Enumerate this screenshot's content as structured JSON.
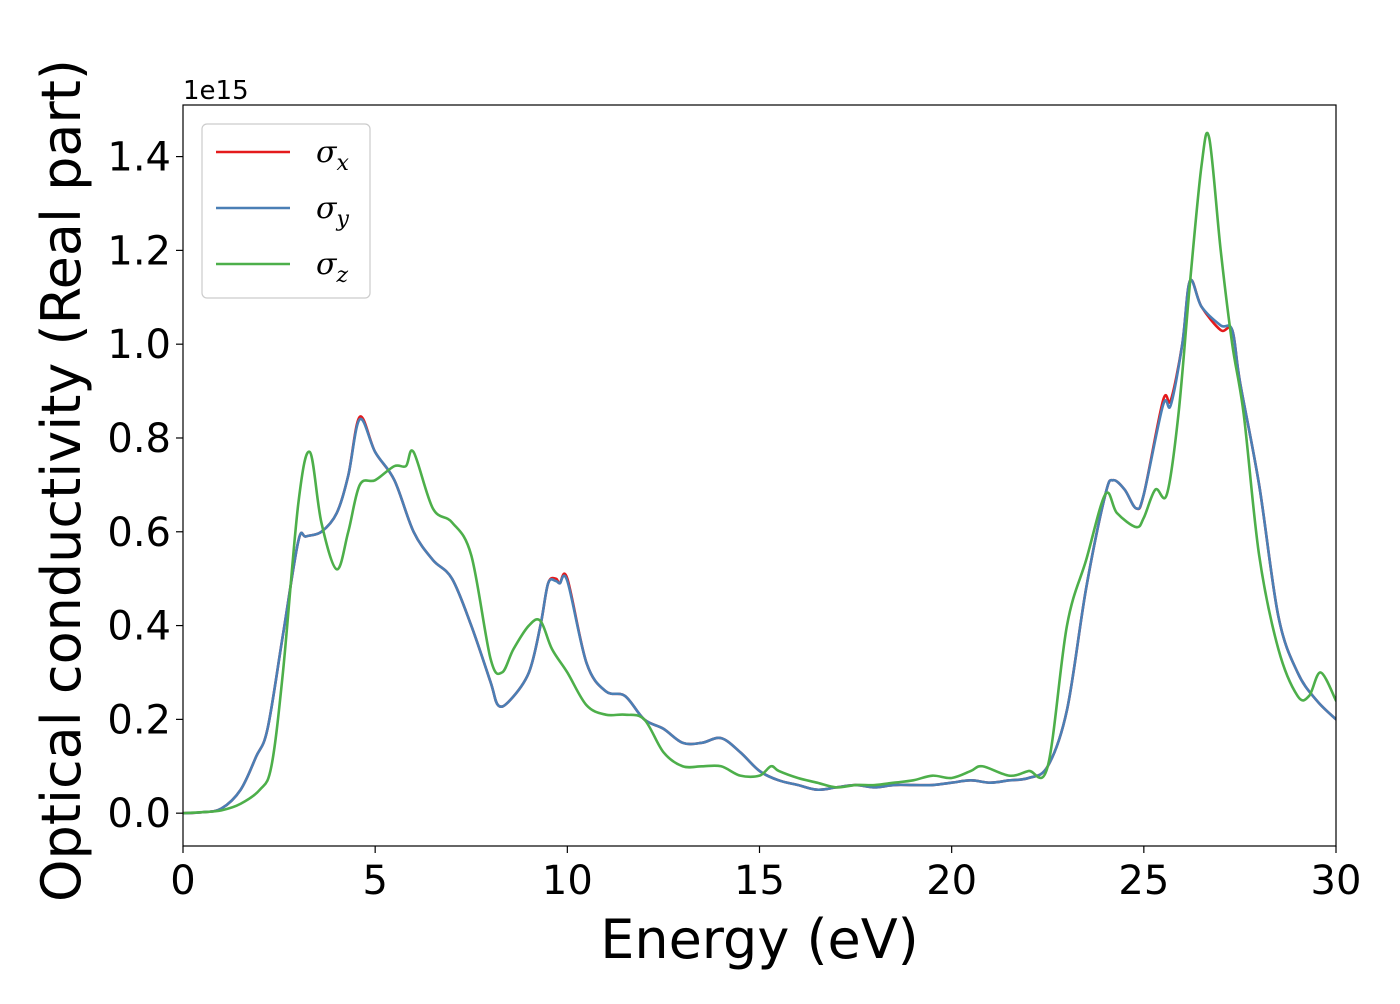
{
  "chart_data": {
    "type": "line",
    "title": "",
    "xlabel": "Energy (eV)",
    "ylabel": "Optical conductivity (Real part)",
    "y_offset_label": "1e15",
    "y_scale": 1000000000000000.0,
    "xlim": [
      0,
      30
    ],
    "ylim": [
      -0.07,
      1.51
    ],
    "x_ticks": [
      0,
      5,
      10,
      15,
      20,
      25,
      30
    ],
    "x_tick_labels": [
      "0",
      "5",
      "10",
      "15",
      "20",
      "25",
      "30"
    ],
    "y_ticks": [
      0.0,
      0.2,
      0.4,
      0.6,
      0.8,
      1.0,
      1.2,
      1.4
    ],
    "y_tick_labels": [
      "0.0",
      "0.2",
      "0.4",
      "0.6",
      "0.8",
      "1.0",
      "1.2",
      "1.4"
    ],
    "grid": false,
    "legend_position": "top-left",
    "series": [
      {
        "name": "σ_x",
        "legend_base": "σ",
        "legend_sub": "x",
        "color": "#e41a1c",
        "x": [
          0,
          0.5,
          1.0,
          1.5,
          1.9,
          2.2,
          2.6,
          3.0,
          3.2,
          3.6,
          4.0,
          4.3,
          4.6,
          5.0,
          5.5,
          6.0,
          6.5,
          7.0,
          7.5,
          8.0,
          8.2,
          8.5,
          9.0,
          9.3,
          9.5,
          9.7,
          9.8,
          10.0,
          10.5,
          11.0,
          11.5,
          12.0,
          12.5,
          13.0,
          13.5,
          14.0,
          14.5,
          15.0,
          15.5,
          16.0,
          16.5,
          17.0,
          17.5,
          18.0,
          18.5,
          19.0,
          19.5,
          20.0,
          20.5,
          21.0,
          21.5,
          22.0,
          22.5,
          23.0,
          23.5,
          24.0,
          24.2,
          24.5,
          24.8,
          25.0,
          25.5,
          25.7,
          26.0,
          26.2,
          26.5,
          27.0,
          27.3,
          27.5,
          28.0,
          28.5,
          29.0,
          29.5,
          30.0
        ],
        "y": [
          0.0,
          0.002,
          0.01,
          0.05,
          0.12,
          0.18,
          0.38,
          0.58,
          0.59,
          0.6,
          0.64,
          0.72,
          0.845,
          0.77,
          0.71,
          0.6,
          0.54,
          0.5,
          0.4,
          0.28,
          0.23,
          0.24,
          0.3,
          0.4,
          0.49,
          0.5,
          0.49,
          0.5,
          0.32,
          0.26,
          0.25,
          0.2,
          0.18,
          0.15,
          0.15,
          0.16,
          0.13,
          0.09,
          0.07,
          0.06,
          0.05,
          0.055,
          0.06,
          0.055,
          0.06,
          0.06,
          0.06,
          0.065,
          0.07,
          0.065,
          0.07,
          0.075,
          0.1,
          0.22,
          0.48,
          0.68,
          0.71,
          0.69,
          0.65,
          0.68,
          0.88,
          0.88,
          1.0,
          1.135,
          1.08,
          1.03,
          1.03,
          0.92,
          0.7,
          0.42,
          0.3,
          0.24,
          0.2
        ]
      },
      {
        "name": "σ_y",
        "legend_base": "σ",
        "legend_sub": "y",
        "color": "#4a7fb5",
        "x": [
          0,
          0.5,
          1.0,
          1.5,
          1.9,
          2.2,
          2.6,
          3.0,
          3.2,
          3.6,
          4.0,
          4.3,
          4.6,
          5.0,
          5.5,
          6.0,
          6.5,
          7.0,
          7.5,
          8.0,
          8.2,
          8.5,
          9.0,
          9.3,
          9.5,
          9.7,
          9.8,
          10.0,
          10.5,
          11.0,
          11.5,
          12.0,
          12.5,
          13.0,
          13.5,
          14.0,
          14.5,
          15.0,
          15.5,
          16.0,
          16.5,
          17.0,
          17.5,
          18.0,
          18.5,
          19.0,
          19.5,
          20.0,
          20.5,
          21.0,
          21.5,
          22.0,
          22.5,
          23.0,
          23.5,
          24.0,
          24.2,
          24.5,
          24.8,
          25.0,
          25.5,
          25.7,
          26.0,
          26.2,
          26.5,
          27.0,
          27.3,
          27.5,
          28.0,
          28.5,
          29.0,
          29.5,
          30.0
        ],
        "y": [
          0.0,
          0.002,
          0.01,
          0.05,
          0.12,
          0.18,
          0.38,
          0.58,
          0.59,
          0.6,
          0.64,
          0.72,
          0.84,
          0.77,
          0.71,
          0.6,
          0.54,
          0.5,
          0.4,
          0.28,
          0.23,
          0.24,
          0.3,
          0.4,
          0.49,
          0.495,
          0.49,
          0.495,
          0.32,
          0.26,
          0.25,
          0.2,
          0.18,
          0.15,
          0.15,
          0.16,
          0.13,
          0.09,
          0.07,
          0.06,
          0.05,
          0.055,
          0.06,
          0.055,
          0.06,
          0.06,
          0.06,
          0.065,
          0.07,
          0.065,
          0.07,
          0.075,
          0.1,
          0.22,
          0.48,
          0.68,
          0.71,
          0.69,
          0.65,
          0.68,
          0.87,
          0.87,
          1.0,
          1.135,
          1.08,
          1.04,
          1.03,
          0.92,
          0.7,
          0.42,
          0.3,
          0.24,
          0.2
        ]
      },
      {
        "name": "σ_z",
        "legend_base": "σ",
        "legend_sub": "z",
        "color": "#4daf4a",
        "x": [
          0,
          0.5,
          1.0,
          1.5,
          2.0,
          2.3,
          2.6,
          3.0,
          3.3,
          3.6,
          4.0,
          4.3,
          4.6,
          5.0,
          5.5,
          5.8,
          6.0,
          6.5,
          7.0,
          7.5,
          8.0,
          8.3,
          8.6,
          9.0,
          9.3,
          9.6,
          10.0,
          10.5,
          11.0,
          11.5,
          12.0,
          12.5,
          13.0,
          13.5,
          14.0,
          14.5,
          15.0,
          15.3,
          15.5,
          16.0,
          16.5,
          17.0,
          17.5,
          18.0,
          18.5,
          19.0,
          19.5,
          20.0,
          20.5,
          20.8,
          21.5,
          22.0,
          22.5,
          23.0,
          23.5,
          24.0,
          24.3,
          24.8,
          25.0,
          25.3,
          25.6,
          25.9,
          26.2,
          26.5,
          26.7,
          27.0,
          27.3,
          27.6,
          28.0,
          28.5,
          29.0,
          29.3,
          29.6,
          30.0
        ],
        "y": [
          0.0,
          0.002,
          0.006,
          0.02,
          0.05,
          0.1,
          0.3,
          0.66,
          0.77,
          0.62,
          0.52,
          0.6,
          0.7,
          0.71,
          0.74,
          0.74,
          0.77,
          0.65,
          0.62,
          0.55,
          0.33,
          0.3,
          0.35,
          0.4,
          0.41,
          0.35,
          0.3,
          0.23,
          0.21,
          0.21,
          0.2,
          0.13,
          0.1,
          0.1,
          0.1,
          0.08,
          0.08,
          0.1,
          0.09,
          0.075,
          0.065,
          0.055,
          0.06,
          0.06,
          0.065,
          0.07,
          0.08,
          0.075,
          0.09,
          0.1,
          0.08,
          0.09,
          0.1,
          0.4,
          0.54,
          0.68,
          0.64,
          0.61,
          0.63,
          0.69,
          0.68,
          0.85,
          1.13,
          1.38,
          1.44,
          1.2,
          1.0,
          0.85,
          0.55,
          0.35,
          0.25,
          0.25,
          0.3,
          0.24
        ]
      }
    ]
  }
}
